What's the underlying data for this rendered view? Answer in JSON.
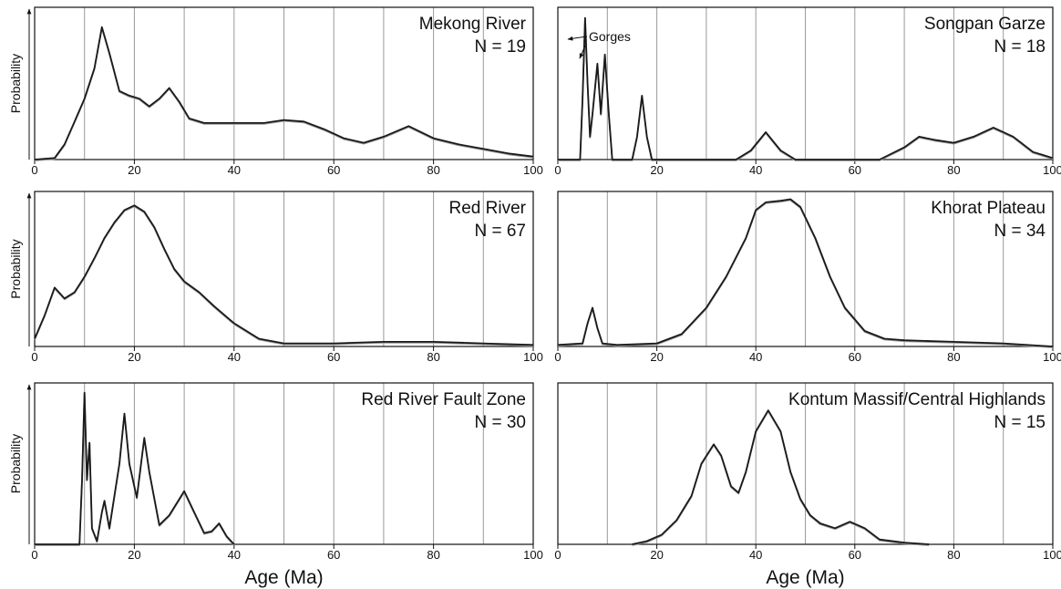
{
  "chart_data": [
    {
      "type": "line",
      "title": "Mekong River",
      "annotation": "N = 19",
      "ylabel": "Probability",
      "x": [
        0,
        4,
        6,
        8,
        10,
        12,
        13.5,
        15,
        17,
        19,
        21,
        23,
        25,
        27,
        29,
        31,
        34,
        38,
        42,
        46,
        50,
        54,
        58,
        62,
        66,
        70,
        75,
        80,
        85,
        90,
        95,
        100
      ],
      "values": [
        0,
        0.01,
        0.1,
        0.25,
        0.4,
        0.6,
        0.87,
        0.7,
        0.45,
        0.42,
        0.4,
        0.35,
        0.4,
        0.47,
        0.38,
        0.27,
        0.24,
        0.24,
        0.24,
        0.24,
        0.26,
        0.25,
        0.2,
        0.14,
        0.11,
        0.15,
        0.22,
        0.14,
        0.1,
        0.07,
        0.04,
        0.02
      ],
      "xlim": [
        0,
        100
      ],
      "ylim": [
        0,
        1
      ],
      "xticks": [
        0,
        20,
        40,
        60,
        80,
        100
      ],
      "xgrid": [
        10,
        20,
        30,
        40,
        50,
        60,
        70,
        80,
        90
      ]
    },
    {
      "type": "line",
      "title": "Songpan Garze",
      "annotation": "N = 18",
      "note": "Gorges",
      "x": [
        0,
        4.5,
        5,
        5.5,
        6,
        6.5,
        7,
        8,
        8.7,
        9.5,
        10.3,
        11,
        13,
        15,
        16,
        17,
        18,
        19,
        21,
        36,
        39,
        42,
        45,
        48,
        65,
        70,
        73,
        76,
        80,
        84,
        88,
        92,
        96,
        100
      ],
      "values": [
        0,
        0,
        0.4,
        0.93,
        0.5,
        0.15,
        0.3,
        0.63,
        0.3,
        0.69,
        0.3,
        0,
        0,
        0,
        0.15,
        0.42,
        0.15,
        0,
        0,
        0,
        0.06,
        0.18,
        0.06,
        0,
        0,
        0.08,
        0.15,
        0.13,
        0.11,
        0.15,
        0.21,
        0.15,
        0.05,
        0.01
      ],
      "xlim": [
        0,
        100
      ],
      "ylim": [
        0,
        1
      ],
      "xticks": [
        0,
        20,
        40,
        60,
        80,
        100
      ],
      "xgrid": [
        10,
        20,
        30,
        40,
        50,
        60,
        70,
        80,
        90
      ]
    },
    {
      "type": "line",
      "title": "Red River",
      "annotation": "N = 67",
      "ylabel": "Probability",
      "x": [
        0,
        2,
        4,
        6,
        8,
        10,
        12,
        14,
        16,
        18,
        20,
        22,
        24,
        26,
        28,
        30,
        33,
        36,
        40,
        45,
        50,
        60,
        70,
        75,
        80,
        90,
        100
      ],
      "values": [
        0.05,
        0.2,
        0.38,
        0.31,
        0.35,
        0.45,
        0.57,
        0.7,
        0.8,
        0.88,
        0.91,
        0.87,
        0.77,
        0.63,
        0.5,
        0.42,
        0.35,
        0.26,
        0.15,
        0.05,
        0.02,
        0.02,
        0.03,
        0.03,
        0.03,
        0.02,
        0.01
      ],
      "xlim": [
        0,
        100
      ],
      "ylim": [
        0,
        1
      ],
      "xticks": [
        0,
        20,
        40,
        60,
        80,
        100
      ],
      "xgrid": [
        10,
        20,
        30,
        40,
        50,
        60,
        70,
        80,
        90
      ]
    },
    {
      "type": "line",
      "title": "Khorat Plateau",
      "annotation": "N = 34",
      "x": [
        0,
        5,
        6,
        7,
        8,
        9,
        12,
        20,
        25,
        30,
        34,
        38,
        40,
        42,
        45,
        47,
        49,
        52,
        55,
        58,
        62,
        66,
        70,
        80,
        90,
        100
      ],
      "values": [
        0.01,
        0.02,
        0.15,
        0.25,
        0.12,
        0.02,
        0.01,
        0.02,
        0.08,
        0.25,
        0.45,
        0.7,
        0.88,
        0.93,
        0.94,
        0.95,
        0.9,
        0.7,
        0.45,
        0.25,
        0.1,
        0.05,
        0.04,
        0.03,
        0.02,
        0
      ],
      "xlim": [
        0,
        100
      ],
      "ylim": [
        0,
        1
      ],
      "xticks": [
        0,
        20,
        40,
        60,
        80,
        100
      ],
      "xgrid": [
        10,
        20,
        30,
        40,
        50,
        60,
        70,
        80,
        90
      ]
    },
    {
      "type": "line",
      "title": "Red River Fault Zone",
      "annotation": "N = 30",
      "ylabel": "Probability",
      "xlabel": "Age (Ma)",
      "x": [
        0,
        9,
        9.5,
        10,
        10.5,
        11,
        11.5,
        12.5,
        13.5,
        14,
        15,
        17,
        18,
        19,
        20.5,
        22,
        23,
        25,
        27,
        30,
        32,
        34,
        35.5,
        37,
        38.5,
        40
      ],
      "values": [
        0,
        0,
        0.4,
        0.94,
        0.4,
        0.63,
        0.1,
        0.02,
        0.2,
        0.27,
        0.1,
        0.5,
        0.81,
        0.5,
        0.29,
        0.66,
        0.45,
        0.12,
        0.18,
        0.33,
        0.2,
        0.07,
        0.08,
        0.13,
        0.05,
        0
      ],
      "xlim": [
        0,
        100
      ],
      "ylim": [
        0,
        1
      ],
      "xticks": [
        0,
        20,
        40,
        60,
        80,
        100
      ],
      "xgrid": [
        10,
        20,
        30,
        40,
        50,
        60,
        70,
        80,
        90
      ]
    },
    {
      "type": "line",
      "title": "Kontum Massif/Central Highlands",
      "annotation": "N = 15",
      "xlabel": "Age (Ma)",
      "x": [
        15,
        18,
        21,
        24,
        27,
        29,
        31.5,
        33,
        35,
        36.5,
        38,
        40,
        42.5,
        45,
        47,
        49,
        51,
        53,
        56,
        59,
        62,
        65,
        70,
        75
      ],
      "values": [
        0,
        0.02,
        0.06,
        0.15,
        0.3,
        0.5,
        0.62,
        0.55,
        0.36,
        0.32,
        0.45,
        0.7,
        0.83,
        0.7,
        0.45,
        0.28,
        0.18,
        0.13,
        0.1,
        0.14,
        0.1,
        0.03,
        0.01,
        0
      ],
      "xlim": [
        0,
        100
      ],
      "ylim": [
        0,
        1
      ],
      "xticks": [
        0,
        20,
        40,
        60,
        80,
        100
      ],
      "xgrid": [
        10,
        20,
        30,
        40,
        50,
        60,
        70,
        80,
        90
      ]
    }
  ]
}
